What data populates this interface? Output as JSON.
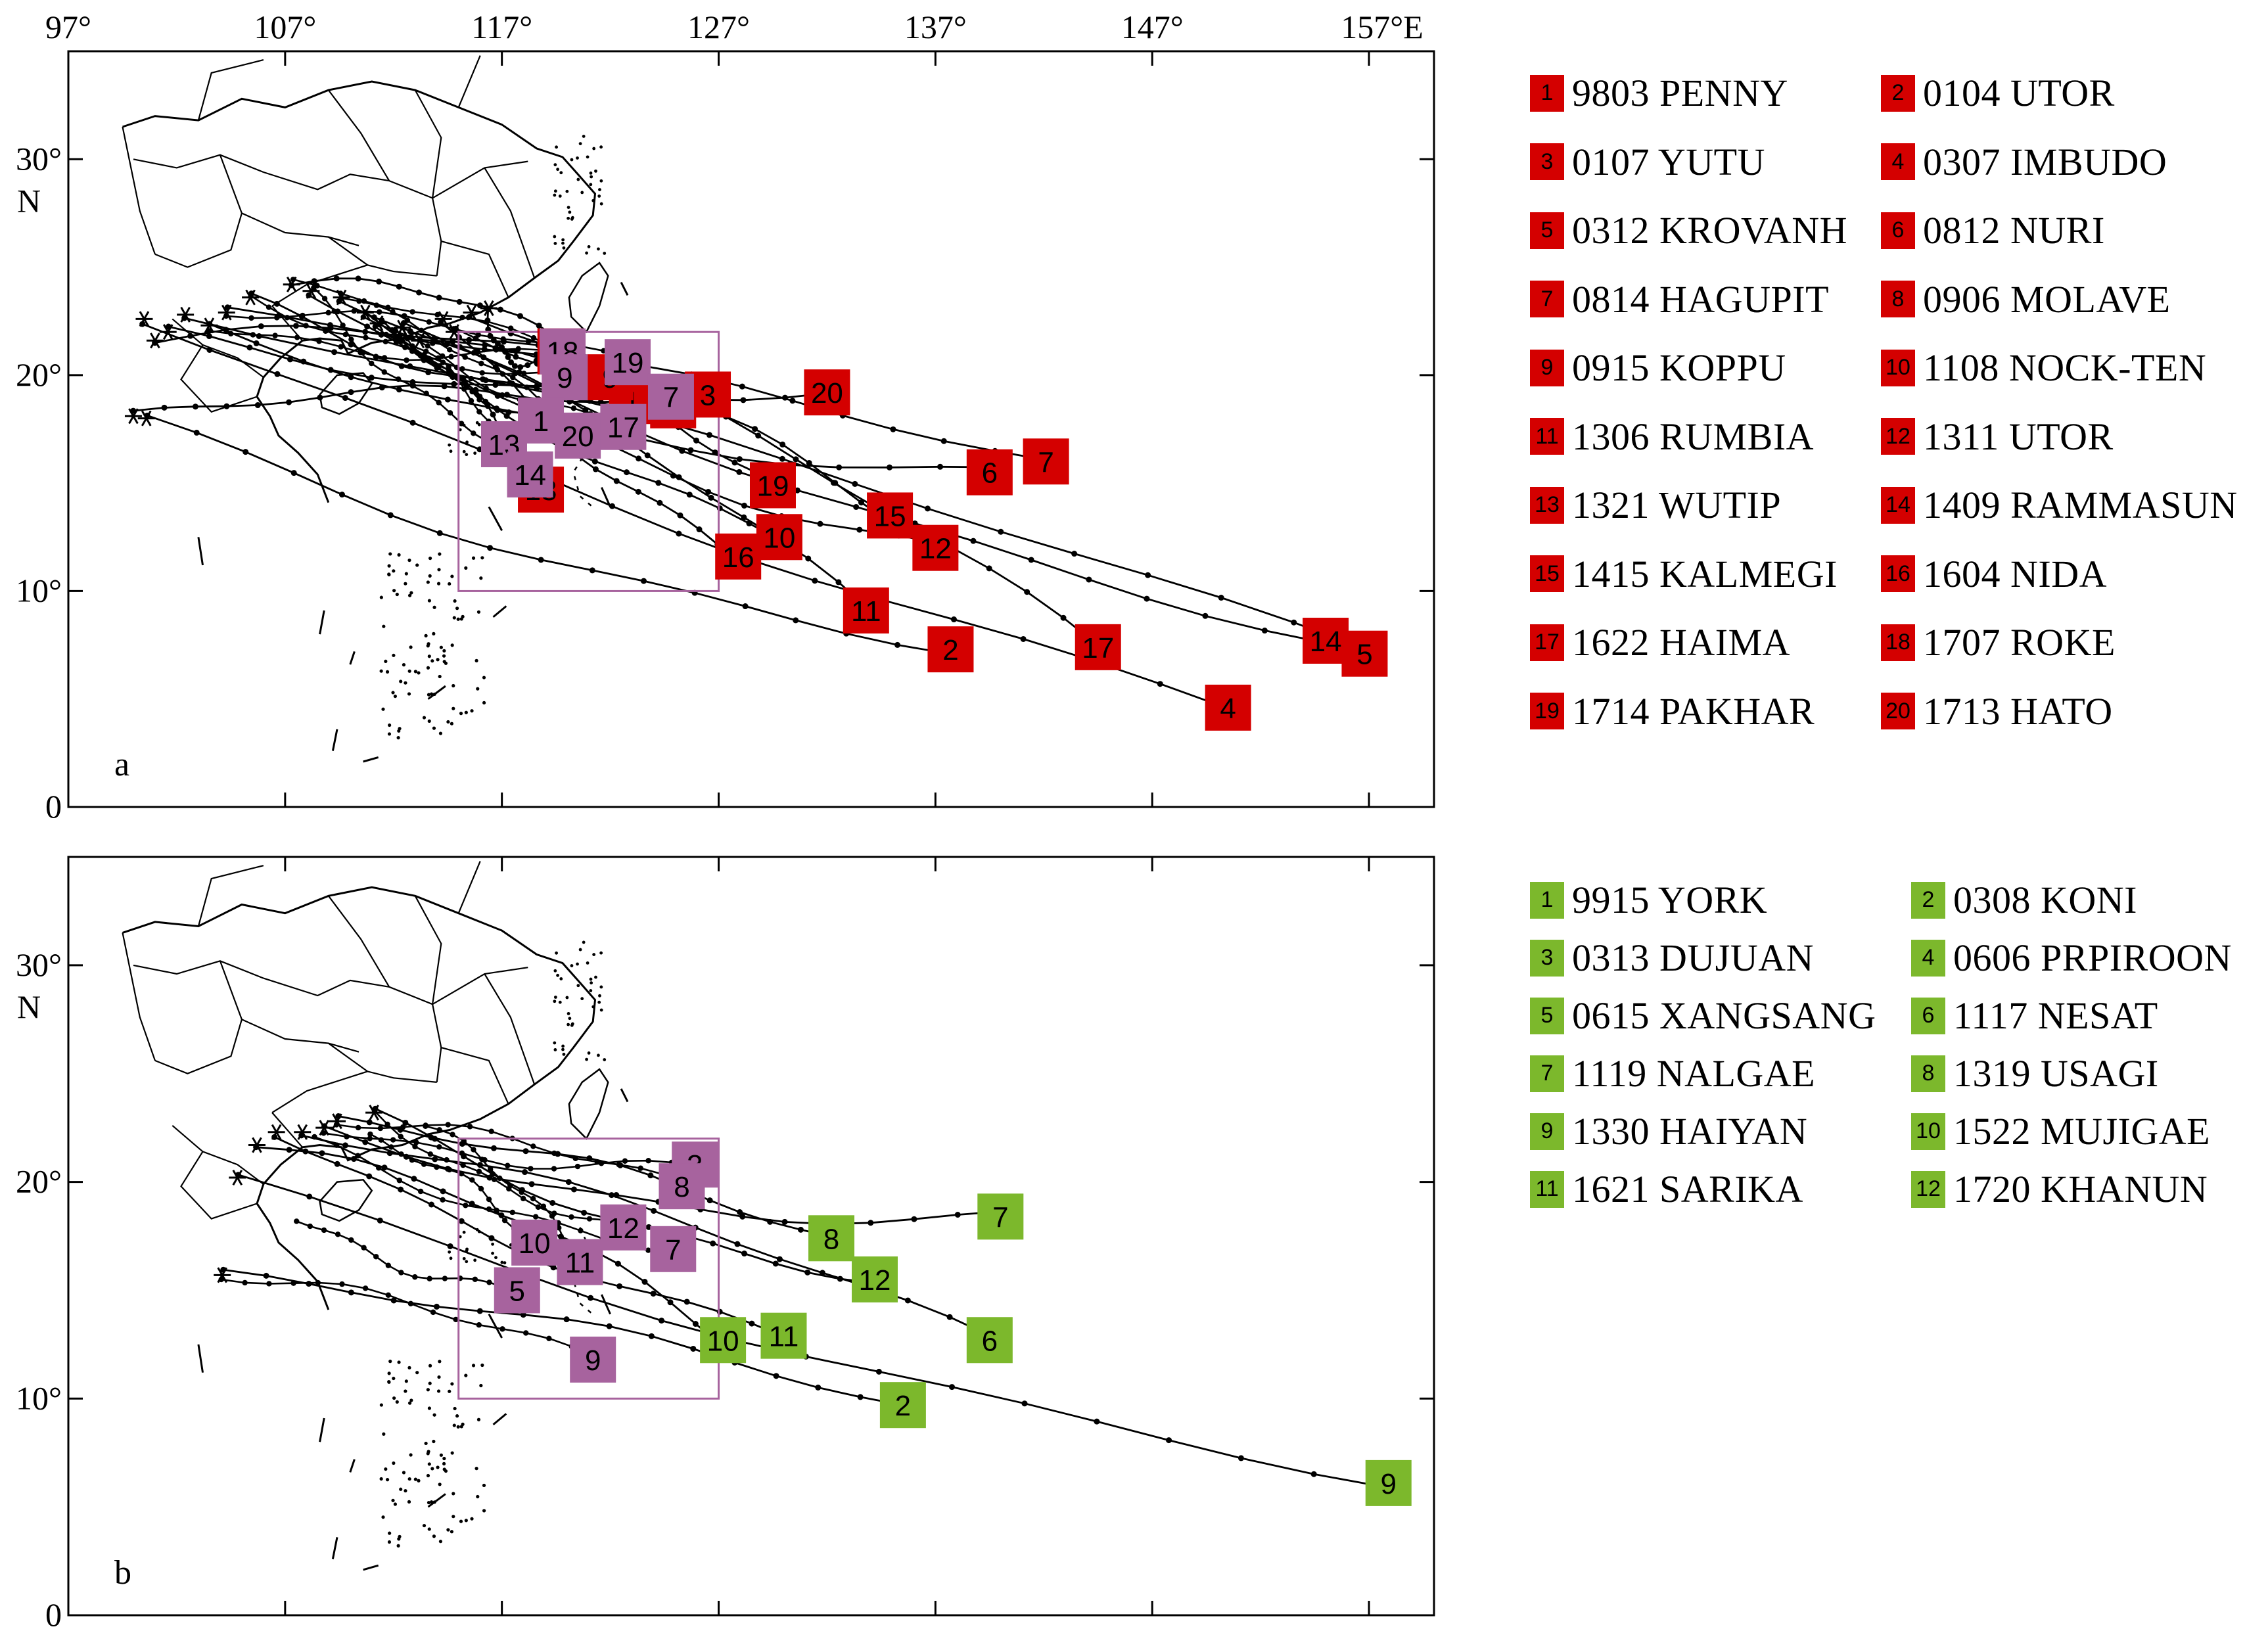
{
  "colors": {
    "red_marker": "#d40000",
    "green_marker": "#7cb82c",
    "purple_marker": "#a7639e",
    "box_outline": "#a7639e"
  },
  "axes": {
    "x_ticks": [
      "97°",
      "107°",
      "117°",
      "127°",
      "137°",
      "147°",
      "157°E"
    ],
    "y_ticks": [
      "0",
      "10°",
      "20°",
      "30°"
    ],
    "y_unit": "N",
    "lon_range": [
      97,
      160
    ],
    "lat_range": [
      0,
      35
    ]
  },
  "panels": [
    {
      "letter": "a",
      "marker_color": "#d40000",
      "legend": [
        {
          "num": "1",
          "label": "9803 PENNY"
        },
        {
          "num": "2",
          "label": "0104 UTOR"
        },
        {
          "num": "3",
          "label": "0107 YUTU"
        },
        {
          "num": "4",
          "label": "0307 IMBUDO"
        },
        {
          "num": "5",
          "label": "0312 KROVANH"
        },
        {
          "num": "6",
          "label": "0812 NURI"
        },
        {
          "num": "7",
          "label": "0814 HAGUPIT"
        },
        {
          "num": "8",
          "label": "0906 MOLAVE"
        },
        {
          "num": "9",
          "label": "0915 KOPPU"
        },
        {
          "num": "10",
          "label": "1108 NOCK-TEN"
        },
        {
          "num": "11",
          "label": "1306 RUMBIA"
        },
        {
          "num": "12",
          "label": "1311 UTOR"
        },
        {
          "num": "13",
          "label": "1321 WUTIP"
        },
        {
          "num": "14",
          "label": "1409 RAMMASUN"
        },
        {
          "num": "15",
          "label": "1415 KALMEGI"
        },
        {
          "num": "16",
          "label": "1604 NIDA"
        },
        {
          "num": "17",
          "label": "1622 HAIMA"
        },
        {
          "num": "18",
          "label": "1707 ROKE"
        },
        {
          "num": "19",
          "label": "1714 PAKHAR"
        },
        {
          "num": "20",
          "label": "1713 HATO"
        }
      ],
      "start_markers": [
        {
          "num": "1",
          "lon": 123.0,
          "lat": 18.8
        },
        {
          "num": "2",
          "lon": 137.7,
          "lat": 7.3
        },
        {
          "num": "3",
          "lon": 126.5,
          "lat": 19.1
        },
        {
          "num": "4",
          "lon": 150.5,
          "lat": 4.6
        },
        {
          "num": "5",
          "lon": 156.8,
          "lat": 7.1
        },
        {
          "num": "6",
          "lon": 139.5,
          "lat": 15.5
        },
        {
          "num": "7",
          "lon": 142.1,
          "lat": 16.0
        },
        {
          "num": "8",
          "lon": 124.9,
          "lat": 18.6
        },
        {
          "num": "9",
          "lon": 122.0,
          "lat": 19.9
        },
        {
          "num": "10",
          "lon": 129.8,
          "lat": 12.5
        },
        {
          "num": "11",
          "lon": 133.8,
          "lat": 9.1
        },
        {
          "num": "12",
          "lon": 137.0,
          "lat": 12.0
        },
        {
          "num": "13",
          "lon": 118.8,
          "lat": 14.7
        },
        {
          "num": "14",
          "lon": 155.0,
          "lat": 7.7
        },
        {
          "num": "15",
          "lon": 134.9,
          "lat": 13.5
        },
        {
          "num": "16",
          "lon": 127.9,
          "lat": 11.6
        },
        {
          "num": "17",
          "lon": 144.5,
          "lat": 7.4
        },
        {
          "num": "18",
          "lon": 119.7,
          "lat": 21.1
        },
        {
          "num": "19",
          "lon": 129.5,
          "lat": 14.9
        },
        {
          "num": "20",
          "lon": 132.0,
          "lat": 19.2
        }
      ],
      "box_markers": [
        {
          "num": "18",
          "lon": 119.8,
          "lat": 21.1
        },
        {
          "num": "19",
          "lon": 122.8,
          "lat": 20.6
        },
        {
          "num": "9",
          "lon": 119.9,
          "lat": 19.9
        },
        {
          "num": "7",
          "lon": 124.8,
          "lat": 19.0
        },
        {
          "num": "13",
          "lon": 117.1,
          "lat": 16.8
        },
        {
          "num": "20",
          "lon": 120.5,
          "lat": 17.2
        },
        {
          "num": "17",
          "lon": 122.6,
          "lat": 17.6
        },
        {
          "num": "14",
          "lon": 118.3,
          "lat": 15.4
        },
        {
          "num": "1",
          "lon": 118.8,
          "lat": 17.9
        }
      ]
    },
    {
      "letter": "b",
      "marker_color": "#7cb82c",
      "legend": [
        {
          "num": "1",
          "label": "9915 YORK"
        },
        {
          "num": "2",
          "label": "0308 KONI"
        },
        {
          "num": "3",
          "label": "0313 DUJUAN"
        },
        {
          "num": "4",
          "label": "0606 PRPIROON"
        },
        {
          "num": "5",
          "label": "0615 XANGSANG"
        },
        {
          "num": "6",
          "label": "1117 NESAT"
        },
        {
          "num": "7",
          "label": "1119 NALGAE"
        },
        {
          "num": "8",
          "label": "1319 USAGI"
        },
        {
          "num": "9",
          "label": "1330 HAIYAN"
        },
        {
          "num": "10",
          "label": "1522 MUJIGAE"
        },
        {
          "num": "11",
          "label": "1621 SARIKA"
        },
        {
          "num": "12",
          "label": "1720 KHANUN"
        }
      ],
      "start_markers": [
        {
          "num": "2",
          "lon": 135.5,
          "lat": 9.7
        },
        {
          "num": "9",
          "lon": 157.9,
          "lat": 6.1
        },
        {
          "num": "10",
          "lon": 127.2,
          "lat": 12.7
        },
        {
          "num": "11",
          "lon": 130.0,
          "lat": 12.9
        },
        {
          "num": "6",
          "lon": 139.5,
          "lat": 12.7
        },
        {
          "num": "7",
          "lon": 140.0,
          "lat": 18.4
        },
        {
          "num": "8",
          "lon": 132.2,
          "lat": 17.4
        },
        {
          "num": "12",
          "lon": 134.2,
          "lat": 15.5
        }
      ],
      "box_markers": [
        {
          "num": "3",
          "lon": 125.9,
          "lat": 20.8
        },
        {
          "num": "8",
          "lon": 125.3,
          "lat": 19.8
        },
        {
          "num": "12",
          "lon": 122.6,
          "lat": 17.9
        },
        {
          "num": "10",
          "lon": 118.5,
          "lat": 17.2
        },
        {
          "num": "7",
          "lon": 124.9,
          "lat": 16.9
        },
        {
          "num": "11",
          "lon": 120.6,
          "lat": 16.3
        },
        {
          "num": "5",
          "lon": 117.7,
          "lat": 15.0
        },
        {
          "num": "9",
          "lon": 121.2,
          "lat": 11.8
        }
      ]
    }
  ]
}
